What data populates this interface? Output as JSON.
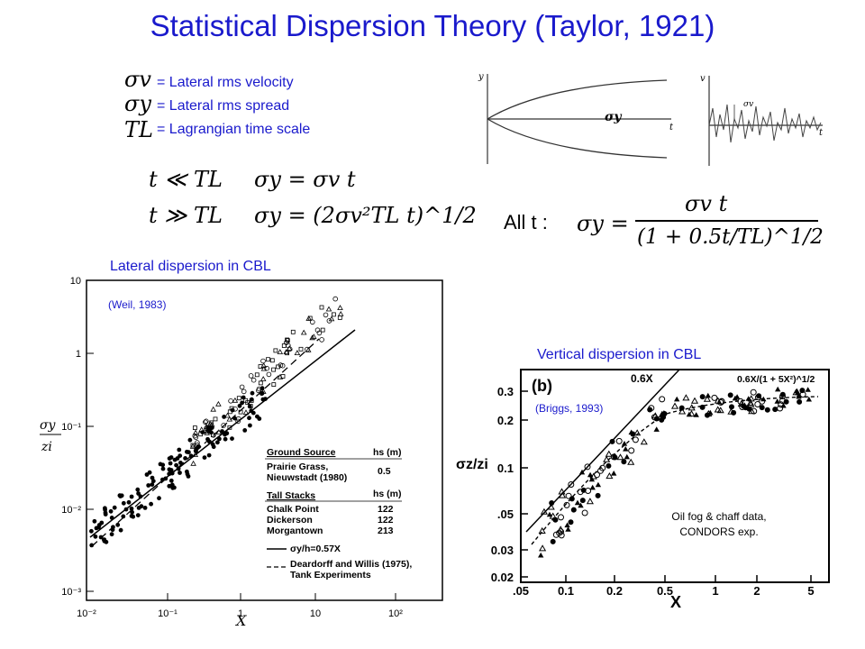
{
  "title": "Statistical Dispersion Theory (Taylor, 1921)",
  "definitions": [
    {
      "symbol": "σv",
      "text": "= Lateral rms velocity"
    },
    {
      "symbol": "σy",
      "text": "= Lateral rms spread"
    },
    {
      "symbol": "TL",
      "text": "= Lagrangian time scale"
    }
  ],
  "equations": {
    "short_cond": "t ≪ TL",
    "short_eq": "σy = σv t",
    "long_cond": "t ≫ TL",
    "long_eq": "σy = (2σv²TL t)^1/2",
    "all_label": "All t :",
    "all_lhs": "σy =",
    "all_num": "σv t",
    "all_den": "(1 + 0.5t/TL)^1/2"
  },
  "sketch": {
    "y_label": "y",
    "t_label": "t",
    "sigma_label": "σy",
    "v_label": "v",
    "t2_label": "t",
    "sigmav_label": "σv"
  },
  "lateral": {
    "caption": "Lateral dispersion in CBL",
    "source": "(Weil, 1983)",
    "ylabel_num": "σy",
    "ylabel_den": "zi",
    "xlabel": "X",
    "yticks": [
      "10",
      "1",
      "10⁻¹",
      "10⁻²",
      "10⁻³"
    ],
    "xticks": [
      "10⁻²",
      "10⁻¹",
      "1",
      "10",
      "10²"
    ],
    "legend": {
      "ground_head": "Ground Source",
      "hs_head1": "hs (m)",
      "ground_name1": "Prairie Grass,",
      "ground_name2": "Nieuwstadt (1980)",
      "ground_hs": "0.5",
      "tall_head": "Tall Stacks",
      "hs_head2": "hs (m)",
      "stacks": [
        {
          "name": "Chalk Point",
          "hs": "122"
        },
        {
          "name": "Dickerson",
          "hs": "122"
        },
        {
          "name": "Morgantown",
          "hs": "213"
        }
      ],
      "solid_line": "σy/h=0.57X",
      "dashed_line1": "Deardorff and Willis (1975),",
      "dashed_line2": "Tank Experiments"
    }
  },
  "vertical": {
    "caption": "Vertical dispersion in CBL",
    "source": "(Briggs, 1993)",
    "panel_label": "(b)",
    "ylabel": "σz/zi",
    "xlabel": "X",
    "note1": "Oil fog & chaff data,",
    "note2": "CONDORS exp.",
    "line1_label": "0.6X",
    "line2_label": "0.6X/(1 + 5X²)^1/2",
    "yticks": [
      "0.3",
      "0.2",
      "0.1",
      ".05",
      "0.03",
      "0.02"
    ],
    "xticks": [
      ".05",
      "0.1",
      "0.2",
      "0.5",
      "1",
      "2",
      "5"
    ]
  }
}
